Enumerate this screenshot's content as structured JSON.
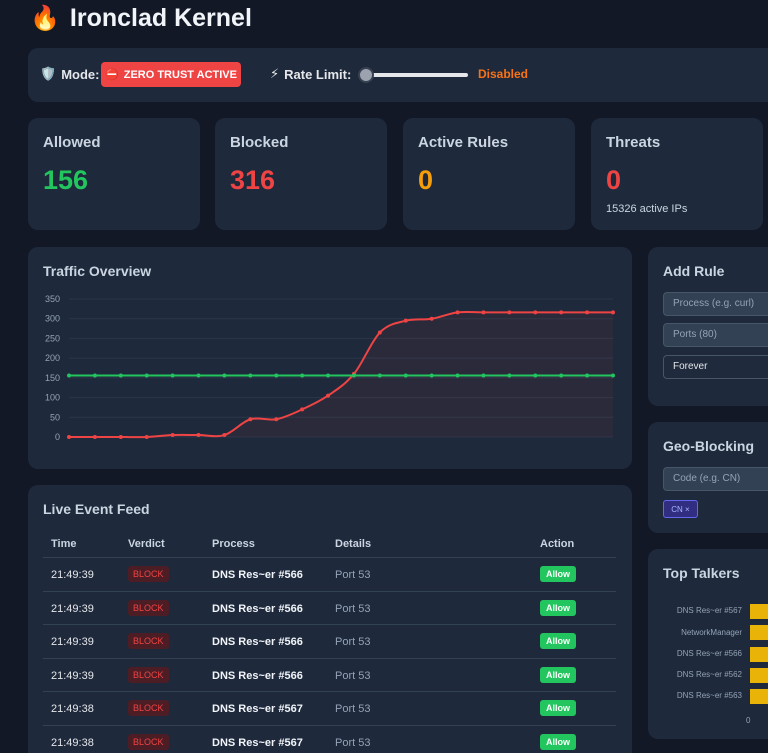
{
  "app": {
    "title": "Ironclad Kernel"
  },
  "mode": {
    "label": "Mode:",
    "value": "ZERO TRUST ACTIVE",
    "rate_limit_label": "Rate Limit:",
    "rate_limit_status": "Disabled",
    "rate_limit_level": 0
  },
  "stats": [
    {
      "label": "Allowed",
      "value": "156",
      "color": "#22c55e"
    },
    {
      "label": "Blocked",
      "value": "316",
      "color": "#ef4444"
    },
    {
      "label": "Active Rules",
      "value": "0",
      "color": "#f59e0b"
    },
    {
      "label": "Threats",
      "value": "0",
      "color": "#ef4444",
      "sub": "15326 active IPs"
    }
  ],
  "traffic": {
    "title": "Traffic Overview"
  },
  "chart_data": {
    "type": "line",
    "title": "Traffic Overview",
    "xlabel": "",
    "ylabel": "",
    "ylim": [
      0,
      350
    ],
    "yticks": [
      0,
      50,
      100,
      150,
      200,
      250,
      300,
      350
    ],
    "grid": true,
    "series": [
      {
        "color": "#ef4444",
        "values": [
          0,
          0,
          0,
          0,
          5,
          5,
          5,
          45,
          45,
          70,
          105,
          160,
          265,
          295,
          300,
          316,
          316,
          316,
          316,
          316,
          316,
          316
        ]
      },
      {
        "color": "#22c55e",
        "values": [
          156,
          156,
          156,
          156,
          156,
          156,
          156,
          156,
          156,
          156,
          156,
          156,
          156,
          156,
          156,
          156,
          156,
          156,
          156,
          156,
          156,
          156
        ]
      }
    ]
  },
  "feed": {
    "title": "Live Event Feed",
    "columns": {
      "time": "Time",
      "verdict": "Verdict",
      "process": "Process",
      "details": "Details",
      "action": "Action"
    },
    "rows": [
      {
        "time": "21:49:39",
        "verdict": "BLOCK",
        "process": "DNS Res~er #566",
        "details": "Port 53",
        "action": "Allow"
      },
      {
        "time": "21:49:39",
        "verdict": "BLOCK",
        "process": "DNS Res~er #566",
        "details": "Port 53",
        "action": "Allow"
      },
      {
        "time": "21:49:39",
        "verdict": "BLOCK",
        "process": "DNS Res~er #566",
        "details": "Port 53",
        "action": "Allow"
      },
      {
        "time": "21:49:39",
        "verdict": "BLOCK",
        "process": "DNS Res~er #566",
        "details": "Port 53",
        "action": "Allow"
      },
      {
        "time": "21:49:38",
        "verdict": "BLOCK",
        "process": "DNS Res~er #567",
        "details": "Port 53",
        "action": "Allow"
      },
      {
        "time": "21:49:38",
        "verdict": "BLOCK",
        "process": "DNS Res~er #567",
        "details": "Port 53",
        "action": "Allow"
      }
    ]
  },
  "add_rule": {
    "title": "Add Rule",
    "process_placeholder": "Process (e.g. curl)",
    "ports_placeholder": "Ports (80)",
    "duration": "Forever"
  },
  "geo": {
    "title": "Geo-Blocking",
    "code_placeholder": "Code (e.g. CN)",
    "chip": "CN ×"
  },
  "talkers": {
    "title": "Top Talkers",
    "items": [
      "DNS Res~er #567",
      "NetworkManager",
      "DNS Res~er #566",
      "DNS Res~er #562",
      "DNS Res~er #563"
    ],
    "axis_zero": "0"
  },
  "colors": {
    "accent_red": "#ef4444",
    "accent_green": "#22c55e",
    "accent_orange": "#f97316",
    "bar_yellow": "#eab308"
  }
}
